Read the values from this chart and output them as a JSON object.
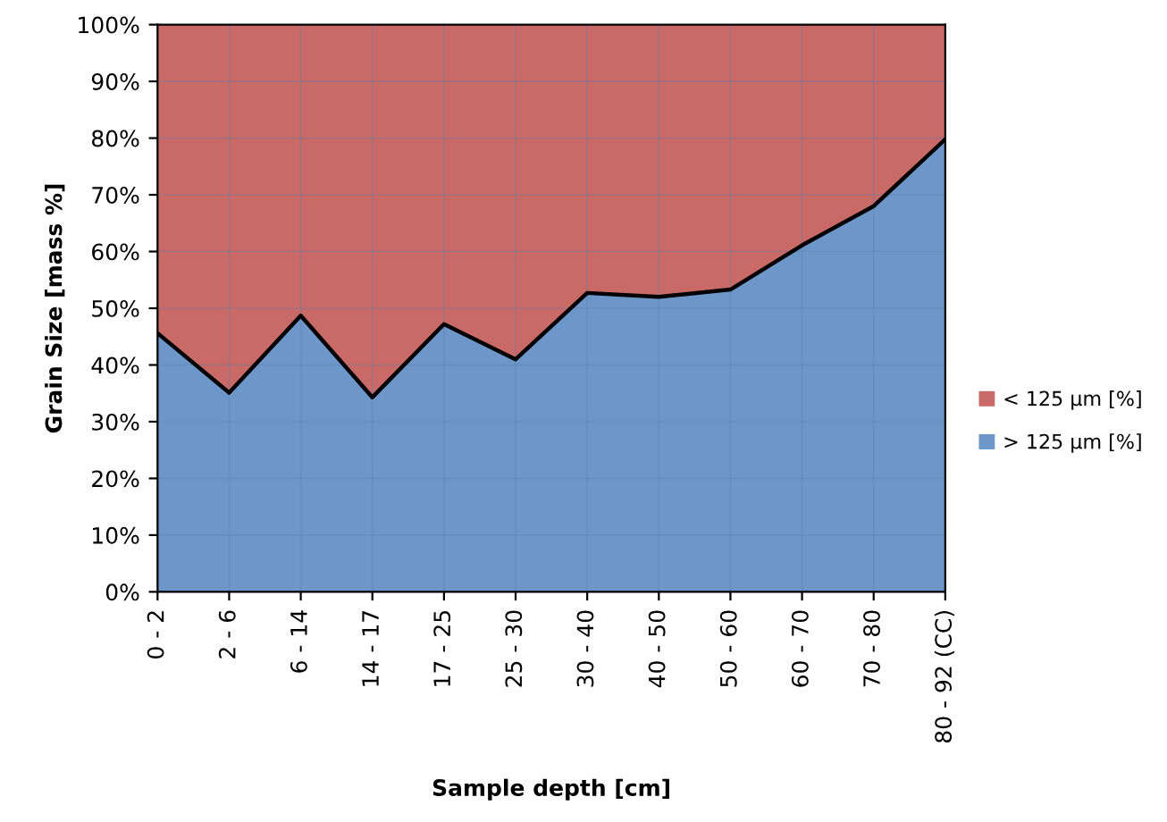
{
  "chart_data": {
    "type": "area",
    "stacked": true,
    "xlabel": "Sample depth [cm]",
    "ylabel": "Grain Size [mass %]",
    "categories": [
      "0 - 2",
      "2 - 6",
      "6 - 14",
      "14 - 17",
      "17 - 25",
      "25 - 30",
      "30 - 40",
      "40 - 50",
      "50 - 60",
      "60 - 70",
      "70 - 80",
      "80 - 92 (CC)"
    ],
    "series": [
      {
        "name": "> 125 µm [%]",
        "color": "#6d97c9",
        "values": [
          45.6,
          35.1,
          48.7,
          34.3,
          47.2,
          41.0,
          52.7,
          52.0,
          53.3,
          61.1,
          68.0,
          79.8
        ]
      },
      {
        "name": "< 125 µm [%]",
        "color": "#c96a67",
        "values": [
          54.4,
          64.9,
          51.3,
          65.7,
          52.8,
          59.0,
          47.3,
          48.0,
          46.7,
          38.9,
          32.0,
          20.2
        ]
      }
    ],
    "ylim": [
      0,
      100
    ],
    "yticks": [
      {
        "value": 0,
        "label": "0%"
      },
      {
        "value": 10,
        "label": "10%"
      },
      {
        "value": 20,
        "label": "20%"
      },
      {
        "value": 30,
        "label": "30%"
      },
      {
        "value": 40,
        "label": "40%"
      },
      {
        "value": 50,
        "label": "50%"
      },
      {
        "value": 60,
        "label": "60%"
      },
      {
        "value": 70,
        "label": "70%"
      },
      {
        "value": 80,
        "label": "80%"
      },
      {
        "value": 90,
        "label": "90%"
      },
      {
        "value": 100,
        "label": "100%"
      }
    ],
    "grid": true,
    "legend": "right"
  }
}
